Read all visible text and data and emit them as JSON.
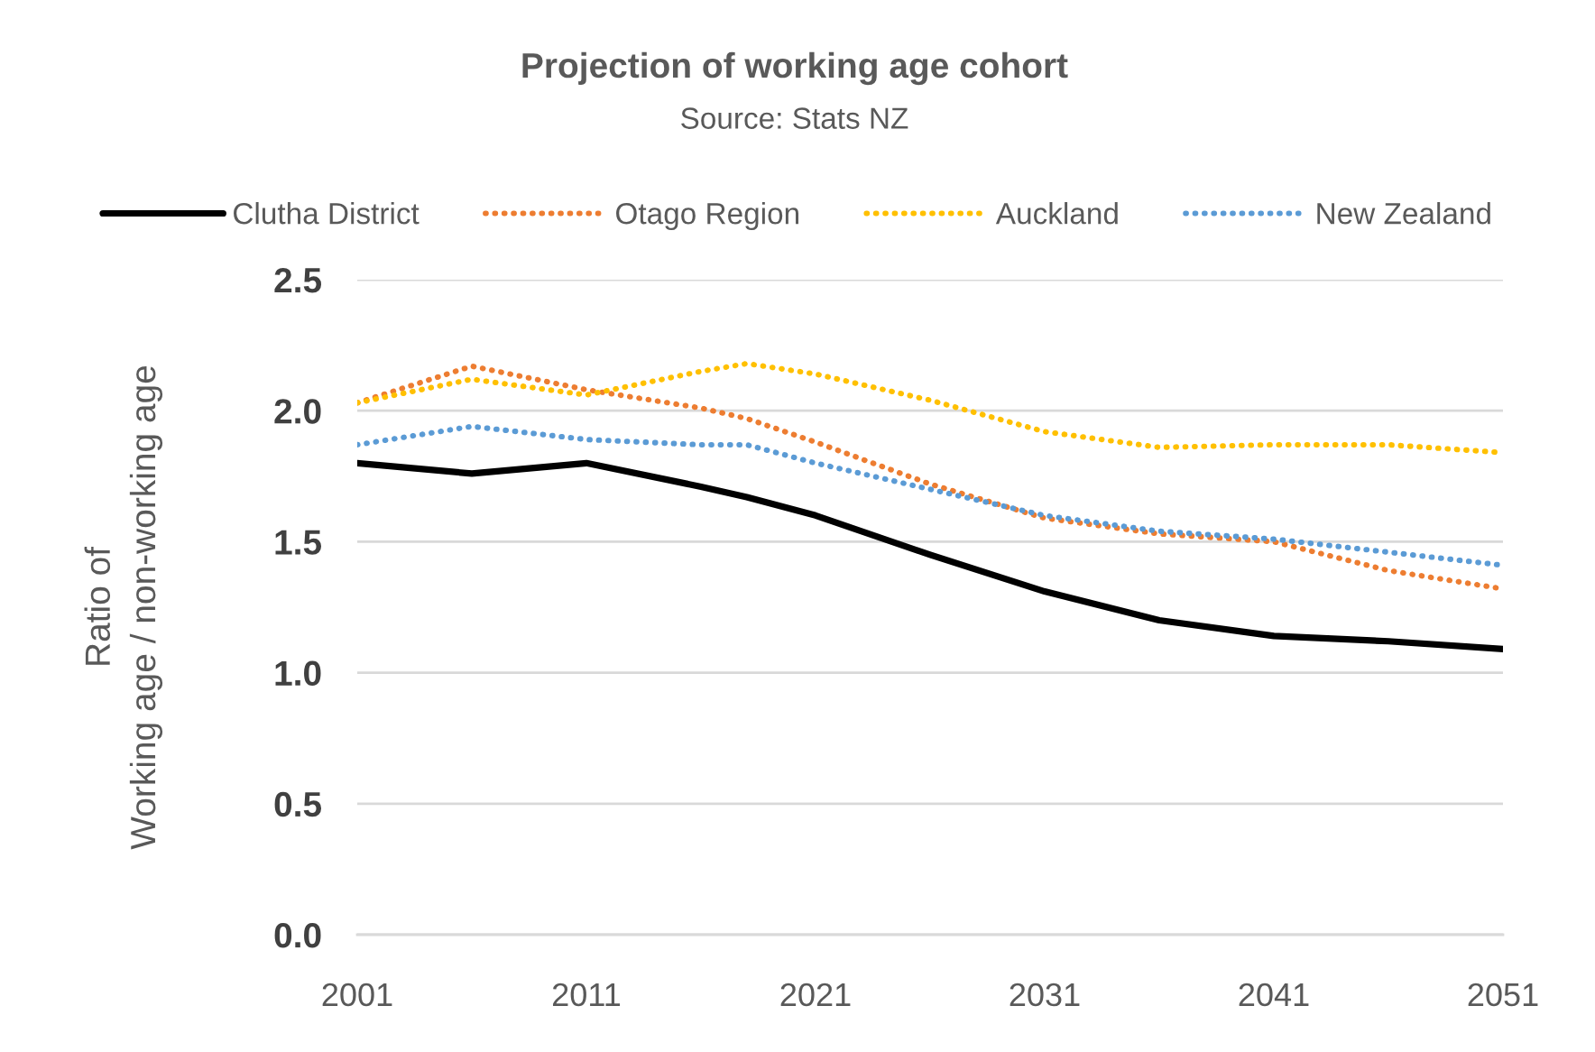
{
  "chart_data": {
    "type": "line",
    "title": "Projection of working age cohort",
    "subtitle": "Source: Stats NZ",
    "ylabel": "Ratio of\nWorking age / non-working age",
    "x": [
      2001,
      2006,
      2011,
      2016,
      2018,
      2021,
      2026,
      2031,
      2036,
      2041,
      2046,
      2051
    ],
    "series": [
      {
        "name": "Clutha District",
        "color": "#000000",
        "line_style": "solid",
        "values": [
          1.8,
          1.76,
          1.8,
          1.71,
          1.67,
          1.6,
          1.45,
          1.31,
          1.2,
          1.14,
          1.12,
          1.09
        ]
      },
      {
        "name": "Otago Region",
        "color": "#ed7d31",
        "line_style": "dotted",
        "values": [
          2.03,
          2.17,
          2.08,
          2.01,
          1.97,
          1.88,
          1.72,
          1.59,
          1.53,
          1.5,
          1.39,
          1.32
        ]
      },
      {
        "name": "Auckland",
        "color": "#ffc000",
        "line_style": "dotted",
        "values": [
          2.03,
          2.12,
          2.06,
          2.15,
          2.18,
          2.14,
          2.04,
          1.92,
          1.86,
          1.87,
          1.87,
          1.84
        ]
      },
      {
        "name": "New Zealand",
        "color": "#5b9bd5",
        "line_style": "dotted",
        "values": [
          1.87,
          1.94,
          1.89,
          1.87,
          1.87,
          1.8,
          1.7,
          1.6,
          1.54,
          1.51,
          1.46,
          1.41
        ]
      }
    ],
    "xlim": [
      2001,
      2051
    ],
    "xticks": [
      2001,
      2011,
      2021,
      2031,
      2041,
      2051
    ],
    "ylim": [
      0,
      2.5
    ],
    "yticks": [
      {
        "value": 0,
        "label": "0.0"
      },
      0.5,
      {
        "value": 1,
        "label": "1.0"
      },
      1.5,
      {
        "value": 2,
        "label": "2.0"
      },
      2.5
    ],
    "grid": "y",
    "legend": "top"
  }
}
